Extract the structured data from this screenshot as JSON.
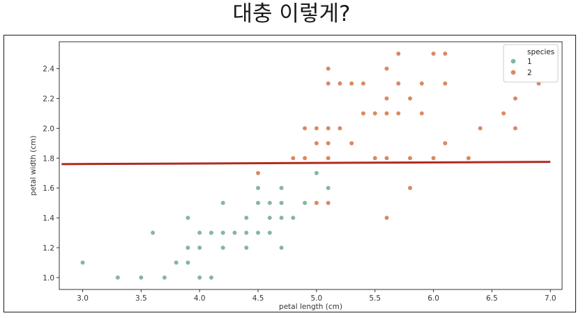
{
  "heading": "대충 이렇게?",
  "colors": {
    "species1": "#86b5a2",
    "species2": "#d98964",
    "line": "#b22a1f"
  },
  "chart_data": {
    "type": "scatter",
    "xlabel": "petal length (cm)",
    "ylabel": "petal width (cm)",
    "xlim": [
      2.8,
      7.1
    ],
    "ylim": [
      0.92,
      2.58
    ],
    "xticks": [
      3.0,
      3.5,
      4.0,
      4.5,
      5.0,
      5.5,
      6.0,
      6.5,
      7.0
    ],
    "xtick_labels": [
      "3.0",
      "3.5",
      "4.0",
      "4.5",
      "5.0",
      "5.5",
      "6.0",
      "6.5",
      "7.0"
    ],
    "yticks": [
      1.0,
      1.2,
      1.4,
      1.6,
      1.8,
      2.0,
      2.2,
      2.4
    ],
    "ytick_labels": [
      "1.0",
      "1.2",
      "1.4",
      "1.6",
      "1.8",
      "2.0",
      "2.2",
      "2.4"
    ],
    "grid": false,
    "legend": {
      "title": "species",
      "placement": "top-right"
    },
    "series": [
      {
        "name": "1",
        "points": [
          [
            3.0,
            1.1
          ],
          [
            3.3,
            1.0
          ],
          [
            3.5,
            1.0
          ],
          [
            3.6,
            1.3
          ],
          [
            3.7,
            1.0
          ],
          [
            3.8,
            1.1
          ],
          [
            3.9,
            1.1
          ],
          [
            3.9,
            1.2
          ],
          [
            3.9,
            1.4
          ],
          [
            4.0,
            1.0
          ],
          [
            4.0,
            1.2
          ],
          [
            4.0,
            1.3
          ],
          [
            4.1,
            1.0
          ],
          [
            4.1,
            1.3
          ],
          [
            4.2,
            1.2
          ],
          [
            4.2,
            1.3
          ],
          [
            4.2,
            1.5
          ],
          [
            4.3,
            1.3
          ],
          [
            4.4,
            1.2
          ],
          [
            4.4,
            1.3
          ],
          [
            4.4,
            1.4
          ],
          [
            4.5,
            1.3
          ],
          [
            4.5,
            1.5
          ],
          [
            4.5,
            1.6
          ],
          [
            4.6,
            1.3
          ],
          [
            4.6,
            1.4
          ],
          [
            4.6,
            1.5
          ],
          [
            4.7,
            1.2
          ],
          [
            4.7,
            1.4
          ],
          [
            4.7,
            1.5
          ],
          [
            4.7,
            1.6
          ],
          [
            4.8,
            1.4
          ],
          [
            4.9,
            1.5
          ],
          [
            5.0,
            1.7
          ],
          [
            5.1,
            1.6
          ]
        ]
      },
      {
        "name": "2",
        "points": [
          [
            4.5,
            1.7
          ],
          [
            4.8,
            1.8
          ],
          [
            4.9,
            1.8
          ],
          [
            4.9,
            2.0
          ],
          [
            5.0,
            1.5
          ],
          [
            5.0,
            1.9
          ],
          [
            5.0,
            2.0
          ],
          [
            5.1,
            1.5
          ],
          [
            5.1,
            1.8
          ],
          [
            5.1,
            1.9
          ],
          [
            5.1,
            2.0
          ],
          [
            5.1,
            2.3
          ],
          [
            5.1,
            2.4
          ],
          [
            5.2,
            2.0
          ],
          [
            5.2,
            2.3
          ],
          [
            5.3,
            1.9
          ],
          [
            5.3,
            2.3
          ],
          [
            5.4,
            2.1
          ],
          [
            5.4,
            2.3
          ],
          [
            5.5,
            1.8
          ],
          [
            5.5,
            2.1
          ],
          [
            5.6,
            1.4
          ],
          [
            5.6,
            1.8
          ],
          [
            5.6,
            2.1
          ],
          [
            5.6,
            2.2
          ],
          [
            5.6,
            2.4
          ],
          [
            5.7,
            2.1
          ],
          [
            5.7,
            2.3
          ],
          [
            5.7,
            2.5
          ],
          [
            5.8,
            1.6
          ],
          [
            5.8,
            1.8
          ],
          [
            5.8,
            2.2
          ],
          [
            5.9,
            2.1
          ],
          [
            5.9,
            2.3
          ],
          [
            6.0,
            1.8
          ],
          [
            6.0,
            2.5
          ],
          [
            6.1,
            1.9
          ],
          [
            6.1,
            2.3
          ],
          [
            6.1,
            2.5
          ],
          [
            6.3,
            1.8
          ],
          [
            6.4,
            2.0
          ],
          [
            6.6,
            2.1
          ],
          [
            6.7,
            2.0
          ],
          [
            6.7,
            2.2
          ],
          [
            6.9,
            2.3
          ]
        ]
      }
    ],
    "reference_line": {
      "x": [
        2.82,
        7.0
      ],
      "y": [
        1.76,
        1.775
      ]
    }
  }
}
